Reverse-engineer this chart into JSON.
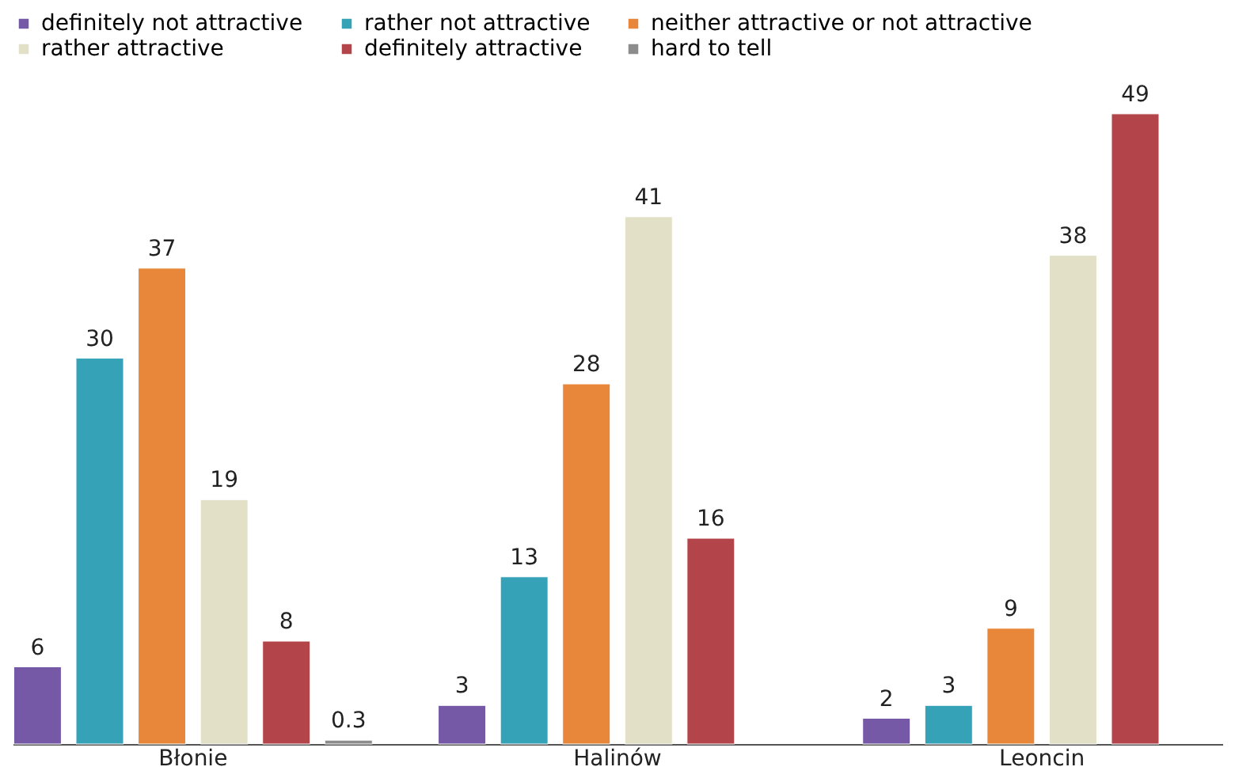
{
  "chart_data": {
    "type": "bar",
    "categories": [
      "Błonie",
      "Halinów",
      "Leoncin"
    ],
    "series": [
      {
        "name": "definitely not attractive",
        "color": "#7559a6",
        "values": [
          6,
          3,
          2
        ]
      },
      {
        "name": "rather not attractive",
        "color": "#35a2b8",
        "values": [
          30,
          13,
          3
        ]
      },
      {
        "name": "neither attractive or not attractive",
        "color": "#e8873a",
        "values": [
          37,
          28,
          9
        ]
      },
      {
        "name": "rather attractive",
        "color": "#e3e0c8",
        "values": [
          19,
          41,
          38
        ]
      },
      {
        "name": "definitely attractive",
        "color": "#b3454a",
        "values": [
          8,
          16,
          49
        ]
      },
      {
        "name": "hard to tell",
        "color": "#8c8c8c",
        "values": [
          0.3,
          null,
          null
        ]
      }
    ],
    "data_labels": true,
    "legend": "top",
    "grid": false
  }
}
